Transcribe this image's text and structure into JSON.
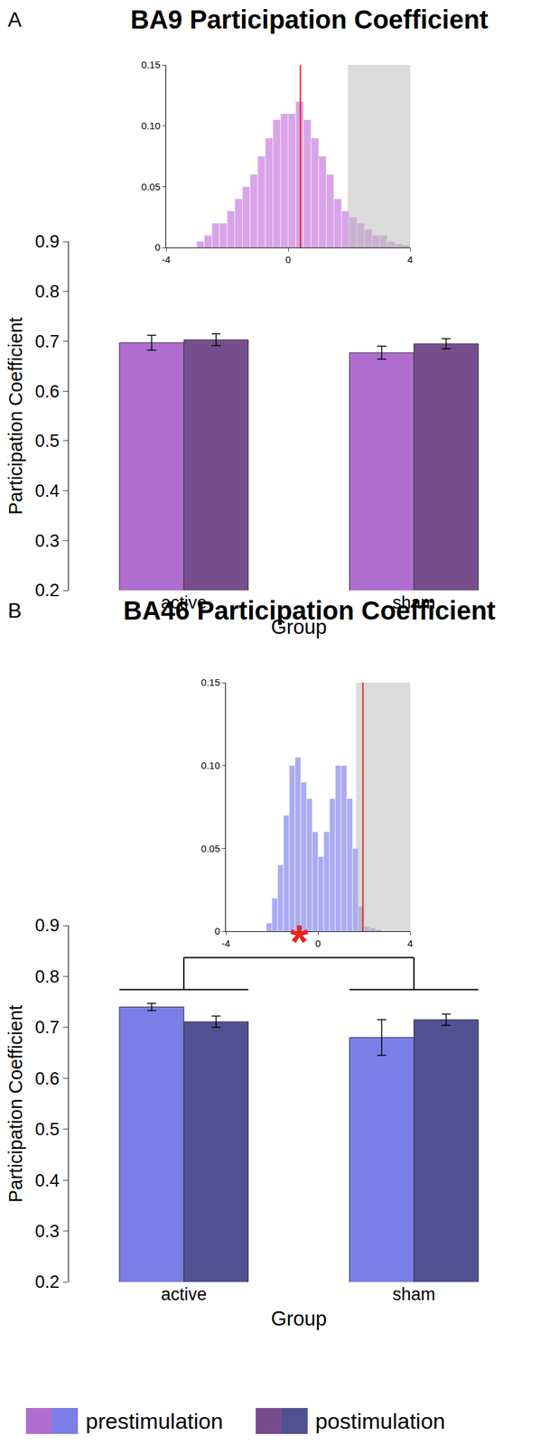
{
  "chart_data": [
    {
      "type": "bar",
      "label": "A",
      "title": "BA9 Participation Coefficient",
      "x_label": "Group",
      "y_label": "Participation Coefficient",
      "categories": [
        "active",
        "sham"
      ],
      "series": [
        {
          "name": "prestimulation",
          "color": "#b06dd0",
          "values": [
            0.697,
            0.677
          ],
          "errors": [
            0.015,
            0.013
          ]
        },
        {
          "name": "postimulation",
          "color": "#774e8c",
          "values": [
            0.703,
            0.695
          ],
          "errors": [
            0.012,
            0.01
          ]
        }
      ],
      "ylim": [
        0.2,
        0.9
      ],
      "yticks": [
        0.2,
        0.3,
        0.4,
        0.5,
        0.6,
        0.7,
        0.8,
        0.9
      ],
      "inset": {
        "type": "histogram",
        "color": "#d9a3e8",
        "bins": [
          -3,
          -2.75,
          -2.5,
          -2.25,
          -2,
          -1.75,
          -1.5,
          -1.25,
          -1,
          -0.75,
          -0.5,
          -0.25,
          0,
          0.25,
          0.5,
          0.75,
          1,
          1.25,
          1.5,
          1.75,
          2,
          2.25,
          2.5,
          2.75,
          3,
          3.25,
          3.5,
          3.75,
          4
        ],
        "counts": [
          0.005,
          0.01,
          0.02,
          0.02,
          0.03,
          0.04,
          0.05,
          0.06,
          0.075,
          0.09,
          0.105,
          0.11,
          0.11,
          0.12,
          0.105,
          0.09,
          0.075,
          0.06,
          0.04,
          0.03,
          0.025,
          0.02,
          0.015,
          0.01,
          0.01,
          0.005,
          0.003,
          0.002
        ],
        "xlim": [
          -4,
          4
        ],
        "xticks": [
          -4,
          0,
          4
        ],
        "ylim": [
          0,
          0.15
        ],
        "yticks": [
          0,
          0.05,
          {
            "value": 0.1,
            "label": "0.10"
          },
          0.15
        ],
        "observed": 0.4,
        "critical_region": [
          1.96,
          4
        ]
      }
    },
    {
      "type": "bar",
      "label": "B",
      "title": "BA46 Participation Coefficient",
      "x_label": "Group",
      "y_label": "Participation Coefficient",
      "categories": [
        "active",
        "sham"
      ],
      "series": [
        {
          "name": "prestimulation",
          "color": "#7a7ee6",
          "values": [
            0.74,
            0.68
          ],
          "errors": [
            0.007,
            0.035
          ]
        },
        {
          "name": "postimulation",
          "color": "#4f5192",
          "values": [
            0.711,
            0.715
          ],
          "errors": [
            0.011,
            0.011
          ]
        }
      ],
      "ylim": [
        0.2,
        0.9
      ],
      "yticks": [
        0.2,
        0.3,
        0.4,
        0.5,
        0.6,
        0.7,
        0.8,
        0.9
      ],
      "significance": {
        "text": "*",
        "pair": [
          "active",
          "sham"
        ],
        "color": "#e8231f"
      },
      "inset": {
        "type": "histogram",
        "color": "#a9acf2",
        "bins": [
          -2.25,
          -2,
          -1.75,
          -1.5,
          -1.25,
          -1,
          -0.75,
          -0.5,
          -0.25,
          0,
          0.25,
          0.5,
          0.75,
          1,
          1.25,
          1.5,
          1.75,
          2,
          2.25,
          2.5,
          2.75
        ],
        "counts": [
          0.005,
          0.02,
          0.04,
          0.07,
          0.1,
          0.105,
          0.09,
          0.08,
          0.06,
          0.045,
          0.06,
          0.08,
          0.1,
          0.1,
          0.08,
          0.05,
          0.015,
          0.003,
          0.002,
          0.001
        ],
        "xlim": [
          -4,
          4
        ],
        "xticks": [
          -4,
          0,
          4
        ],
        "ylim": [
          0,
          0.15
        ],
        "yticks": [
          0,
          0.05,
          {
            "value": 0.1,
            "label": "0.10"
          },
          0.15
        ],
        "observed": 1.95,
        "critical_region": [
          1.65,
          4
        ]
      }
    }
  ]
}
